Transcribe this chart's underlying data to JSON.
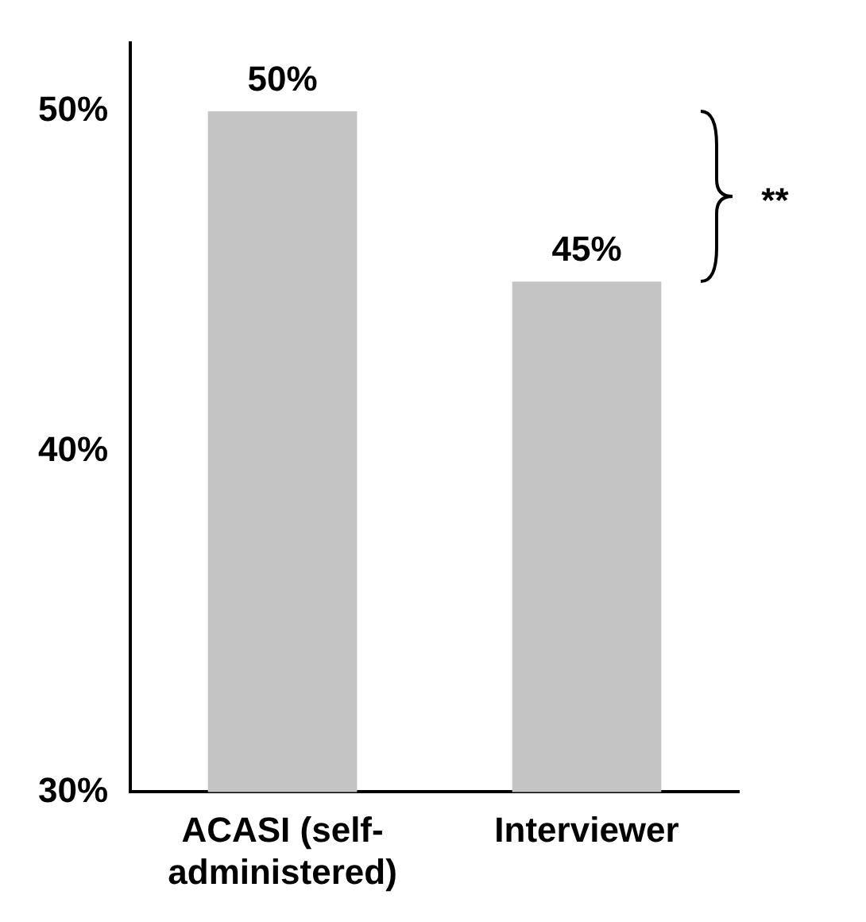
{
  "chart_data": {
    "type": "bar",
    "categories": [
      "ACASI (self-administered)",
      "Interviewer"
    ],
    "values": [
      50,
      45
    ],
    "color": "#c4c4c4",
    "value_labels": [
      "50%",
      "45%"
    ],
    "ylim": [
      30,
      52
    ],
    "yticks": [
      {
        "value": 30,
        "label": "30%"
      },
      {
        "value": 40,
        "label": "40%"
      },
      {
        "value": 50,
        "label": "50%"
      }
    ],
    "annotations": [
      "**"
    ],
    "grid": false,
    "legend": false
  }
}
